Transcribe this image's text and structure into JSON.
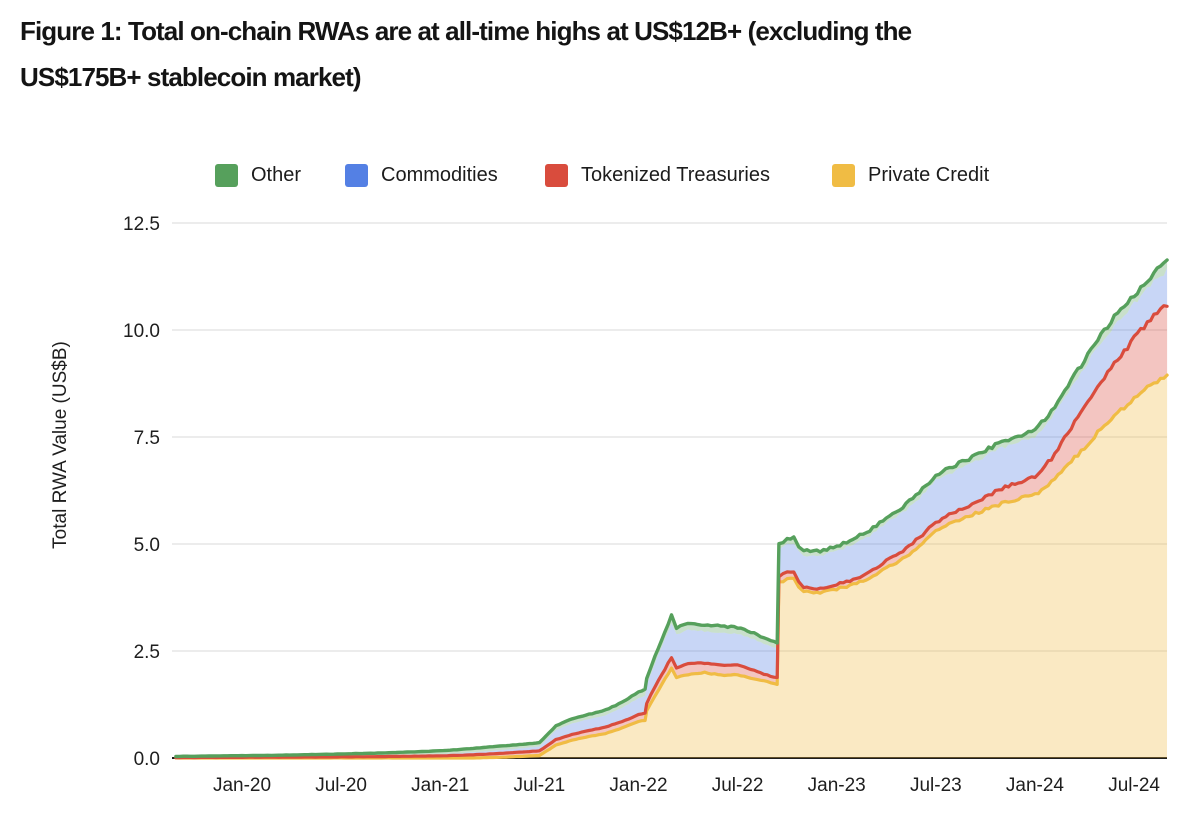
{
  "figure": {
    "title_lines": [
      "Figure 1: Total on-chain RWAs are at all-time highs at US$12B+ (excluding the",
      "US$175B+ stablecoin market)"
    ]
  },
  "chart_data": {
    "type": "area",
    "stacked": true,
    "ylabel": "Total RWA Value (US$B)",
    "xlabel": "",
    "ylim": [
      0,
      12.5
    ],
    "grid": "horizontal only",
    "legend_position": "top",
    "yticks": [
      0,
      2.5,
      5,
      7.5,
      10,
      12.5
    ],
    "ytick_labels": [
      "0.0",
      "2.5",
      "5.0",
      "7.5",
      "10.0",
      "12.5"
    ],
    "xtick_labels": [
      "Jan-20",
      "Jul-20",
      "Jan-21",
      "Jul-21",
      "Jan-22",
      "Jul-22",
      "Jan-23",
      "Jul-23",
      "Jan-24",
      "Jul-24"
    ],
    "xtick_months": [
      4,
      10,
      16,
      22,
      28,
      34,
      40,
      46,
      52,
      58
    ],
    "x_unit": "months since Sep-2019 (0 = Sep-2019, 60 = Sep-2024)",
    "legend": [
      {
        "label": "Other",
        "color": "#56A05C"
      },
      {
        "label": "Commodities",
        "color": "#5480E4"
      },
      {
        "label": "Tokenized Treasuries",
        "color": "#D94C3D"
      },
      {
        "label": "Private Credit",
        "color": "#F0BC44"
      }
    ],
    "series_bottom_to_top": [
      {
        "name": "Private Credit",
        "color": "#F0BC44",
        "stroke": true
      },
      {
        "name": "Tokenized Treasuries",
        "color": "#D94C3D",
        "stroke": true
      },
      {
        "name": "Commodities",
        "color": "#5480E4",
        "stroke": false
      },
      {
        "name": "Other",
        "color": "#56A05C",
        "stroke": true
      }
    ],
    "fill_opacity": 0.32,
    "colors": {
      "gridline": "#d9d9d9",
      "axis": "#1c1c1c",
      "tick_text": "#1e1e1e"
    },
    "points_columns": [
      "month",
      "private_credit",
      "tokenized_treasuries",
      "commodities",
      "other"
    ],
    "points": [
      [
        0,
        0,
        0.01,
        0.002,
        0.025
      ],
      [
        2,
        0,
        0.013,
        0.003,
        0.03
      ],
      [
        4,
        0,
        0.016,
        0.004,
        0.035
      ],
      [
        6,
        0,
        0.018,
        0.005,
        0.04
      ],
      [
        8,
        0,
        0.022,
        0.007,
        0.048
      ],
      [
        10,
        0,
        0.026,
        0.01,
        0.058
      ],
      [
        12,
        0,
        0.032,
        0.016,
        0.065
      ],
      [
        14,
        0,
        0.04,
        0.025,
        0.072
      ],
      [
        16,
        0,
        0.05,
        0.04,
        0.08
      ],
      [
        17,
        0,
        0.06,
        0.05,
        0.085
      ],
      [
        18,
        0,
        0.075,
        0.06,
        0.09
      ],
      [
        19,
        0.01,
        0.085,
        0.07,
        0.095
      ],
      [
        20,
        0.02,
        0.095,
        0.08,
        0.095
      ],
      [
        21,
        0.04,
        0.1,
        0.09,
        0.09
      ],
      [
        22,
        0.06,
        0.105,
        0.105,
        0.09
      ],
      [
        23,
        0.3,
        0.13,
        0.22,
        0.1
      ],
      [
        24,
        0.42,
        0.13,
        0.26,
        0.11
      ],
      [
        25,
        0.5,
        0.14,
        0.27,
        0.11
      ],
      [
        26,
        0.57,
        0.15,
        0.28,
        0.12
      ],
      [
        27,
        0.7,
        0.15,
        0.32,
        0.13
      ],
      [
        28,
        0.85,
        0.16,
        0.39,
        0.15
      ],
      [
        28.4,
        0.88,
        0.17,
        0.4,
        0.15
      ],
      [
        28.5,
        1.1,
        0.18,
        0.42,
        0.15
      ],
      [
        29,
        1.45,
        0.22,
        0.55,
        0.16
      ],
      [
        30,
        2.1,
        0.25,
        0.8,
        0.18
      ],
      [
        30.3,
        1.88,
        0.22,
        0.78,
        0.16
      ],
      [
        31,
        1.95,
        0.25,
        0.8,
        0.16
      ],
      [
        32,
        2.0,
        0.22,
        0.74,
        0.15
      ],
      [
        33,
        1.93,
        0.24,
        0.75,
        0.16
      ],
      [
        34,
        1.95,
        0.22,
        0.73,
        0.15
      ],
      [
        35,
        1.85,
        0.2,
        0.72,
        0.14
      ],
      [
        36,
        1.76,
        0.15,
        0.7,
        0.12
      ],
      [
        36.4,
        1.73,
        0.14,
        0.7,
        0.12
      ],
      [
        36.5,
        4.1,
        0.15,
        0.63,
        0.12
      ],
      [
        37,
        4.18,
        0.15,
        0.65,
        0.12
      ],
      [
        37.4,
        4.22,
        0.15,
        0.66,
        0.12
      ],
      [
        37.7,
        4.0,
        0.12,
        0.7,
        0.12
      ],
      [
        38,
        3.9,
        0.1,
        0.73,
        0.12
      ],
      [
        39,
        3.86,
        0.1,
        0.76,
        0.12
      ],
      [
        40,
        3.95,
        0.1,
        0.78,
        0.12
      ],
      [
        41,
        4.05,
        0.12,
        0.82,
        0.13
      ],
      [
        42,
        4.2,
        0.14,
        0.85,
        0.13
      ],
      [
        43,
        4.45,
        0.16,
        0.88,
        0.13
      ],
      [
        44,
        4.65,
        0.18,
        0.9,
        0.13
      ],
      [
        45,
        4.95,
        0.2,
        0.92,
        0.14
      ],
      [
        46,
        5.3,
        0.2,
        0.98,
        0.13
      ],
      [
        47,
        5.5,
        0.22,
        0.95,
        0.14
      ],
      [
        48,
        5.65,
        0.25,
        0.95,
        0.14
      ],
      [
        49,
        5.8,
        0.3,
        0.95,
        0.14
      ],
      [
        50,
        5.95,
        0.35,
        0.95,
        0.14
      ],
      [
        51,
        6.05,
        0.38,
        0.93,
        0.15
      ],
      [
        52,
        6.15,
        0.42,
        0.93,
        0.15
      ],
      [
        53,
        6.45,
        0.55,
        0.95,
        0.16
      ],
      [
        54,
        6.85,
        0.75,
        0.93,
        0.17
      ],
      [
        55,
        7.25,
        0.95,
        0.92,
        0.18
      ],
      [
        56,
        7.7,
        1.1,
        0.92,
        0.18
      ],
      [
        57,
        8.05,
        1.25,
        0.9,
        0.2
      ],
      [
        58,
        8.4,
        1.4,
        0.82,
        0.2
      ],
      [
        59,
        8.7,
        1.55,
        0.8,
        0.2
      ],
      [
        60,
        8.95,
        1.65,
        0.8,
        0.2
      ]
    ]
  }
}
